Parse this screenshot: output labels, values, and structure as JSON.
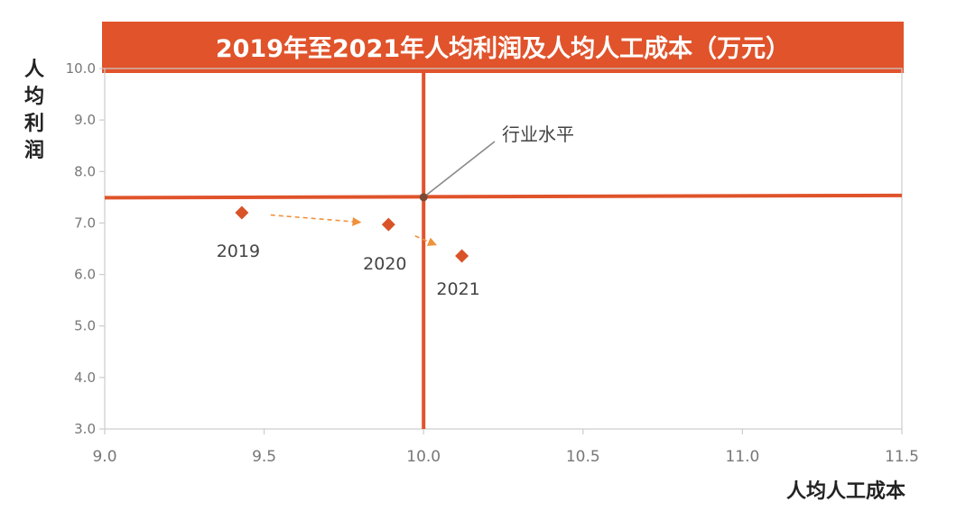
{
  "chart_data": {
    "type": "scatter",
    "title": "2019年至2021年人均利润及人均人工成本（万元）",
    "xlabel": "人均人工成本",
    "ylabel": "人均利润",
    "xlim": [
      9.0,
      11.5
    ],
    "ylim": [
      3.0,
      10.0
    ],
    "x_ticks": [
      "9.0",
      "9.5",
      "10.0",
      "10.5",
      "11.0",
      "11.5"
    ],
    "y_ticks": [
      "3.0",
      "4.0",
      "5.0",
      "6.0",
      "7.0",
      "8.0",
      "9.0",
      "10.0"
    ],
    "points": [
      {
        "label": "2019",
        "x": 9.43,
        "y": 7.2
      },
      {
        "label": "2020",
        "x": 9.89,
        "y": 6.97
      },
      {
        "label": "2021",
        "x": 10.12,
        "y": 6.36
      }
    ],
    "benchmark": {
      "label": "行业水平",
      "x": 10.0,
      "y": 7.5
    },
    "colors": {
      "accent": "#e0532b",
      "point": "#d95328",
      "arrow": "#f0913c",
      "benchmark_dot": "#7a4a36",
      "leader": "#888888",
      "frame": "#cccccc"
    }
  }
}
